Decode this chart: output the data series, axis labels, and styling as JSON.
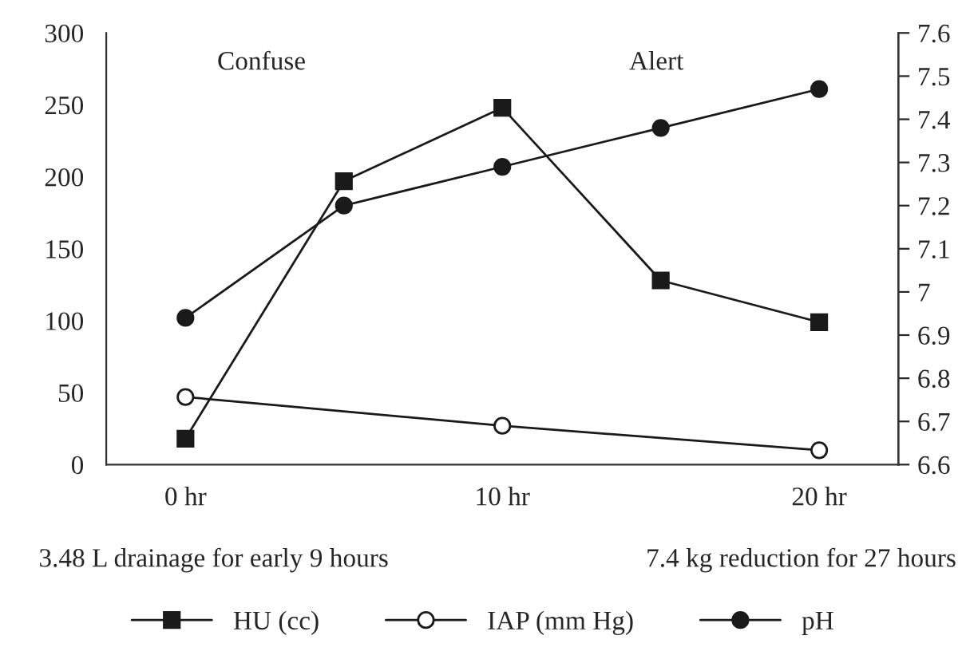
{
  "chart_data": {
    "type": "line",
    "series": [
      {
        "name": "HU (cc)",
        "color": "#1a1a1a",
        "marker": "square",
        "x": [
          0,
          5,
          10,
          15,
          20
        ],
        "values": [
          18,
          197,
          248,
          128,
          99
        ]
      },
      {
        "name": "IAP (mm Hg)",
        "color": "#1a1a1a",
        "marker": "circle",
        "x": [
          0,
          10,
          20
        ],
        "values": [
          47,
          27,
          10
        ]
      },
      {
        "name": "pH",
        "color": "#1a1a1a",
        "marker": "circle",
        "axis": "y2",
        "x": [
          0,
          5,
          10,
          15,
          20
        ],
        "values": [
          6.94,
          7.2,
          7.29,
          7.38,
          7.47
        ]
      }
    ],
    "xlim": [
      -2.5,
      22.5
    ],
    "xticks": [
      {
        "value": 0,
        "label": "0 hr"
      },
      {
        "value": 10,
        "label": "10 hr"
      },
      {
        "value": 20,
        "label": "20 hr"
      }
    ],
    "ylim": [
      0,
      300
    ],
    "yticks": [
      0,
      50,
      100,
      150,
      200,
      250,
      300
    ],
    "y2lim": [
      6.6,
      7.6
    ],
    "y2ticks": [
      6.6,
      6.7,
      6.8,
      6.9,
      7,
      7.1,
      7.2,
      7.3,
      7.4,
      7.5,
      7.6
    ],
    "annotations": [
      "Confuse",
      "Alert",
      "3.48 L drainage for early 9 hours",
      "7.4 kg reduction for 27 hours"
    ],
    "legend": "bottom",
    "grid": false
  }
}
